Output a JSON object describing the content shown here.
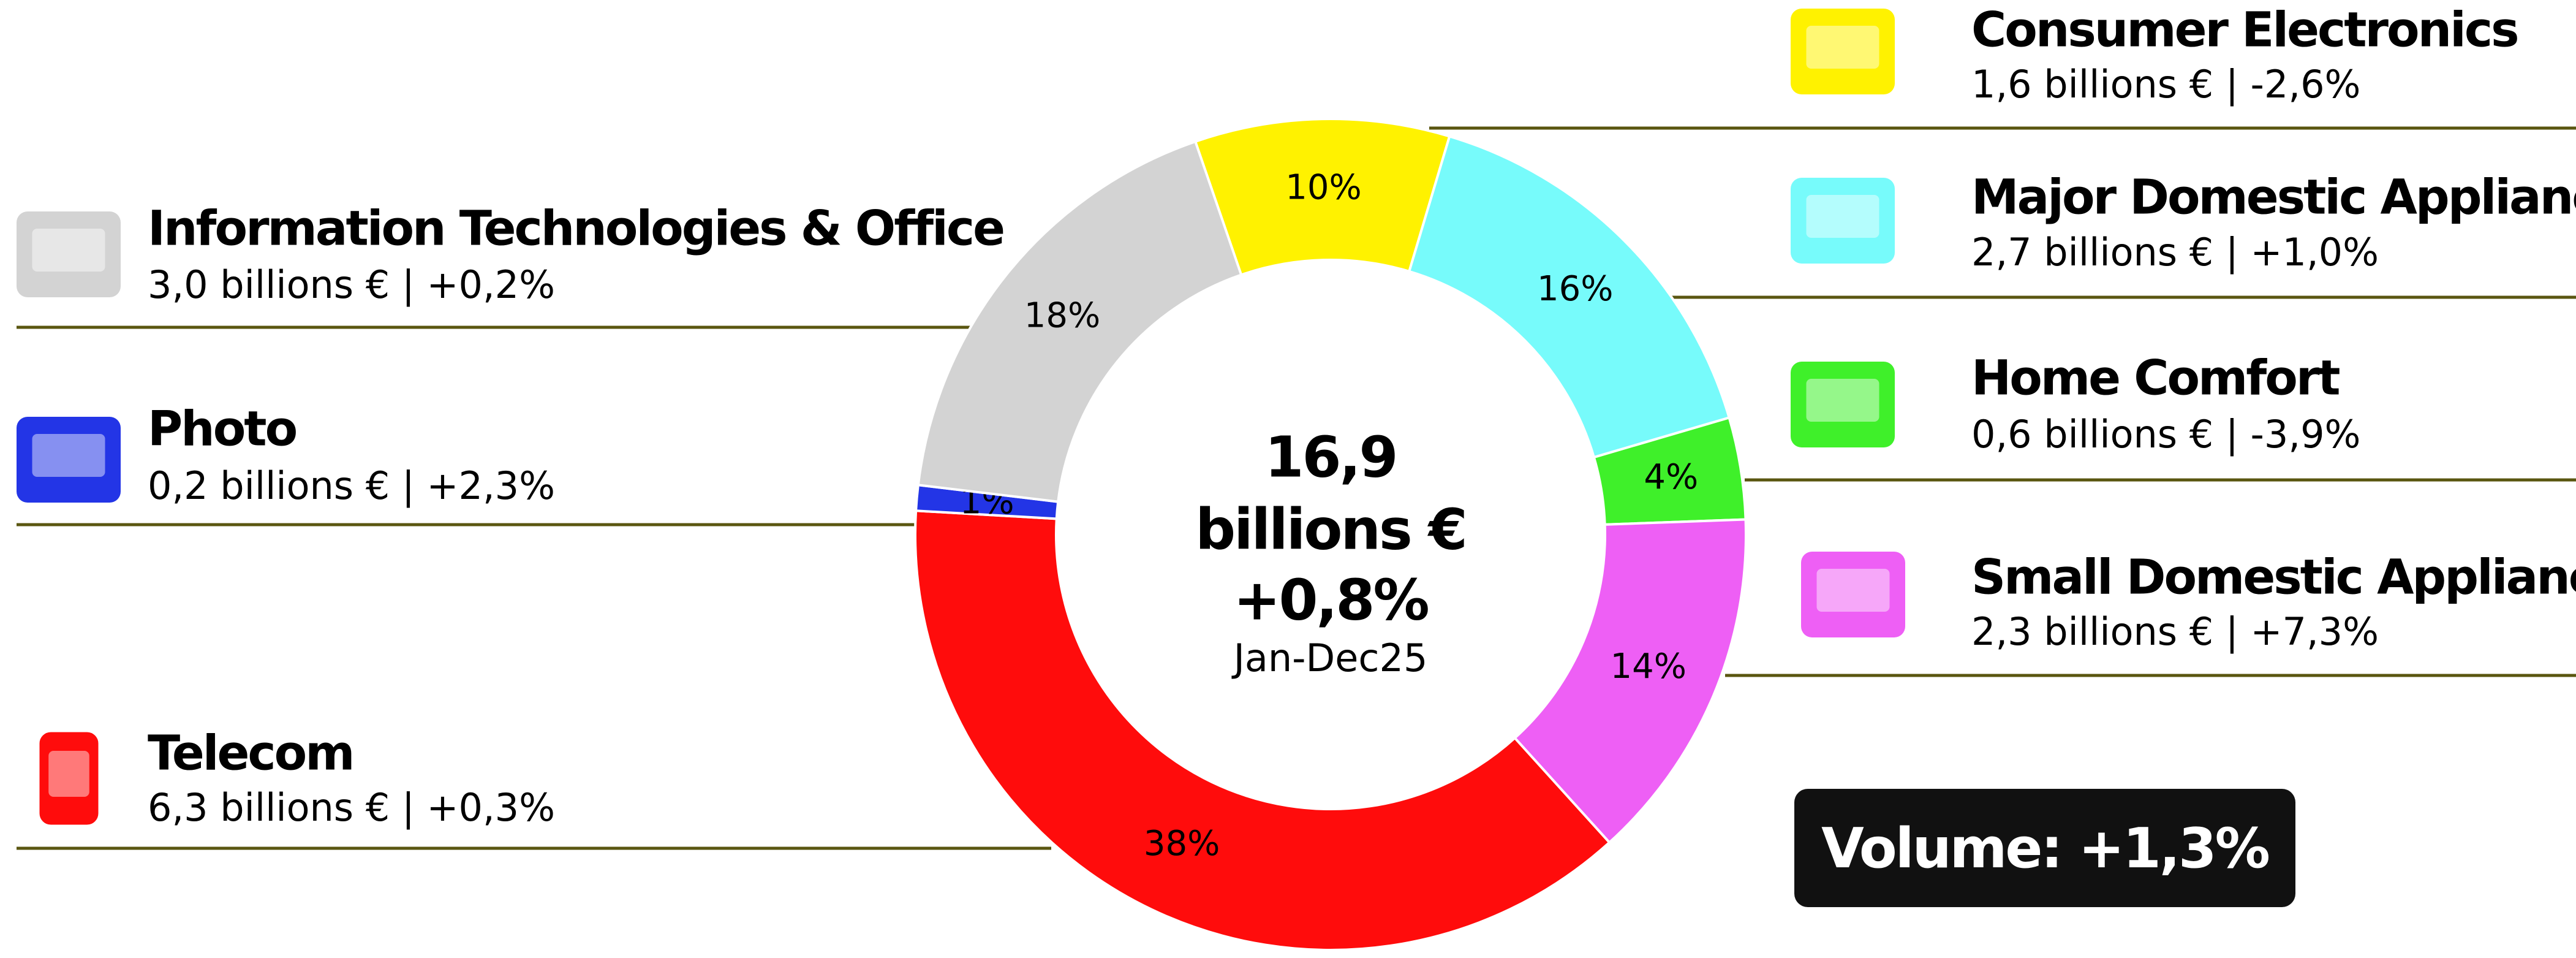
{
  "chart_data": {
    "type": "pie",
    "categories": [
      "Consumer Electronics",
      "Major Domestic Appliances",
      "Home Comfort",
      "Small Domestic Appliances",
      "Telecom",
      "Photo",
      "Information Technologies & Office"
    ],
    "values": [
      10,
      16,
      4,
      14,
      38,
      1,
      18
    ],
    "value_labels": [
      "10%",
      "16%",
      "4%",
      "14%",
      "38%",
      "1%",
      "18%"
    ],
    "details": [
      "1,6 billions € | -2,6%",
      "2,7 billions € | +1,0%",
      "0,6 billions € | -3,9%",
      "2,3 billions € | +7,3%",
      "6,3 billions € | +0,3%",
      "0,2 billions € | +2,3%",
      "3,0 billions € | +0,2%"
    ],
    "colors": [
      "#fff200",
      "#77fbfb",
      "#3ff02a",
      "#ee5ff5",
      "#ff0c0c",
      "#2335e6",
      "#d3d3d3"
    ],
    "center": {
      "total": "16,9",
      "unit": "billions €",
      "change": "+0,8%",
      "period": "Jan-Dec25"
    },
    "volume": "Volume: +1,3%"
  }
}
